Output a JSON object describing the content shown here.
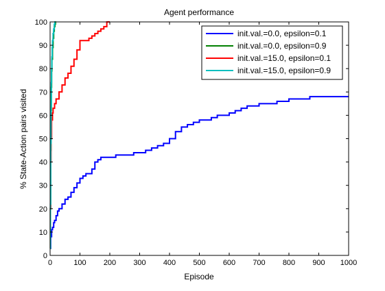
{
  "chart_data": {
    "type": "line",
    "title": "Agent performance",
    "xlabel": "Episode",
    "ylabel": "% State-Action pairs visited",
    "xlim": [
      0,
      1000
    ],
    "ylim": [
      0,
      100
    ],
    "xticks": [
      "0",
      "100",
      "200",
      "300",
      "400",
      "500",
      "600",
      "700",
      "800",
      "900",
      "1000"
    ],
    "yticks": [
      "0",
      "10",
      "20",
      "30",
      "40",
      "50",
      "60",
      "70",
      "80",
      "90",
      "100"
    ],
    "grid": false,
    "legend_position": "top-right",
    "series": [
      {
        "name": "init.val.=0.0, epsilon=0.1",
        "color": "#0000ff",
        "x": [
          0,
          2,
          5,
          8,
          12,
          15,
          20,
          25,
          30,
          40,
          50,
          60,
          70,
          80,
          90,
          100,
          110,
          120,
          130,
          140,
          150,
          160,
          170,
          180,
          190,
          200,
          220,
          240,
          260,
          280,
          300,
          320,
          340,
          360,
          380,
          400,
          420,
          440,
          460,
          480,
          500,
          520,
          540,
          560,
          580,
          600,
          620,
          640,
          660,
          680,
          700,
          730,
          760,
          780,
          800,
          820,
          840,
          860,
          870,
          900,
          950,
          1000
        ],
        "y": [
          3,
          8,
          11,
          12,
          14,
          15,
          17,
          19,
          20,
          22,
          24,
          25,
          27,
          29,
          31,
          33,
          34,
          35,
          35,
          37,
          40,
          41,
          42,
          42,
          42,
          42,
          43,
          43,
          43,
          44,
          44,
          45,
          46,
          47,
          48,
          50,
          53,
          55,
          56,
          57,
          58,
          58,
          59,
          60,
          60,
          61,
          62,
          63,
          64,
          64,
          65,
          65,
          66,
          66,
          67,
          67,
          67,
          67,
          68,
          68,
          68,
          68
        ]
      },
      {
        "name": "init.val.=0.0, epsilon=0.9",
        "color": "#008000",
        "x": [
          0,
          1,
          2,
          3,
          4,
          5,
          6,
          8,
          10,
          12,
          14,
          16,
          18,
          20
        ],
        "y": [
          3,
          20,
          45,
          62,
          72,
          79,
          84,
          89,
          93,
          96,
          98,
          99,
          100,
          100
        ]
      },
      {
        "name": "init.val.=15.0, epsilon=0.1",
        "color": "#ff0000",
        "x": [
          0,
          1,
          2,
          3,
          5,
          8,
          10,
          15,
          20,
          30,
          40,
          50,
          60,
          70,
          80,
          90,
          100,
          110,
          120,
          130,
          140,
          150,
          160,
          170,
          180,
          190,
          200
        ],
        "y": [
          3,
          20,
          40,
          50,
          58,
          61,
          63,
          65,
          67,
          70,
          73,
          76,
          78,
          81,
          84,
          88,
          92,
          92,
          92,
          93,
          94,
          95,
          96,
          97,
          98,
          100,
          100
        ]
      },
      {
        "name": "init.val.=15.0, epsilon=0.9",
        "color": "#00bfbf",
        "x": [
          0,
          1,
          2,
          3,
          4,
          5,
          6,
          7,
          8,
          10,
          12,
          14,
          16,
          18
        ],
        "y": [
          3,
          22,
          48,
          64,
          74,
          80,
          85,
          89,
          92,
          95,
          97,
          99,
          100,
          100
        ]
      }
    ]
  }
}
